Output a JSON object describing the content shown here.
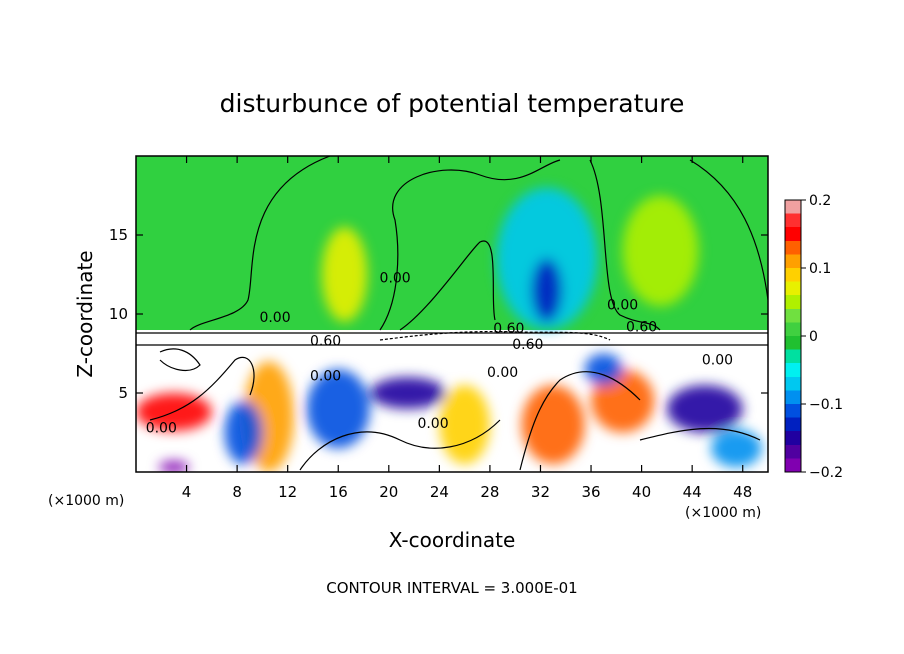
{
  "chart_data": {
    "type": "heatmap",
    "title": "disturbunce of potential temperature",
    "xlabel": "X-coordinate",
    "ylabel": "Z-coordinate",
    "x_unit": "(×1000 m)",
    "y_unit": "(×1000 m)",
    "footer": "CONTOUR INTERVAL = 3.000E-01",
    "xlim": [
      0,
      50
    ],
    "ylim": [
      0,
      20
    ],
    "x_ticks": [
      4,
      8,
      12,
      16,
      20,
      24,
      28,
      32,
      36,
      40,
      44,
      48
    ],
    "y_ticks": [
      5,
      10,
      15
    ],
    "colorbar": {
      "range": [
        -0.2,
        0.2
      ],
      "tick_values": [
        0.2,
        0.1,
        0,
        -0.1,
        -0.2
      ],
      "tick_labels": [
        "0.2",
        "0.1",
        "0",
        "−0.1",
        "−0.2"
      ],
      "colors": [
        "#f0a0a0",
        "#ff3030",
        "#ff0000",
        "#ff6000",
        "#ffa000",
        "#ffd000",
        "#e8f000",
        "#b0f000",
        "#70e040",
        "#40d040",
        "#20c030",
        "#00e0a0",
        "#00f0f0",
        "#00c8f0",
        "#0090f0",
        "#0050e0",
        "#0020c0",
        "#2000a0",
        "#5000a0",
        "#8000b0"
      ]
    },
    "contour_interval": 0.3,
    "contour_labels": [
      {
        "text": "0.00",
        "x": 11,
        "y": 9.5
      },
      {
        "text": "0.00",
        "x": 20.5,
        "y": 12
      },
      {
        "text": "0.00",
        "x": 38.5,
        "y": 10.3
      },
      {
        "text": "0.60",
        "x": 15,
        "y": 8.0
      },
      {
        "text": "0.60",
        "x": 29.5,
        "y": 8.8
      },
      {
        "text": "0.60",
        "x": 31,
        "y": 7.8
      },
      {
        "text": "0.60",
        "x": 40,
        "y": 8.9
      },
      {
        "text": "0.00",
        "x": 15,
        "y": 5.8
      },
      {
        "text": "0.00",
        "x": 29,
        "y": 6.0
      },
      {
        "text": "0.00",
        "x": 46,
        "y": 6.8
      },
      {
        "text": "0.00",
        "x": 2,
        "y": 2.5
      },
      {
        "text": "0.00",
        "x": 23.5,
        "y": 2.8
      }
    ],
    "field_blobs": [
      {
        "x": 16.5,
        "y": 12.5,
        "rx": 1.8,
        "ry": 3.0,
        "value": 0.08
      },
      {
        "x": 32.5,
        "y": 13.5,
        "rx": 4.0,
        "ry": 4.5,
        "value": -0.06
      },
      {
        "x": 32.5,
        "y": 11.5,
        "rx": 1.2,
        "ry": 2.0,
        "value": -0.13
      },
      {
        "x": 41.5,
        "y": 14.0,
        "rx": 3.0,
        "ry": 3.5,
        "value": 0.05
      },
      {
        "x": 3.0,
        "y": 3.8,
        "rx": 3.0,
        "ry": 1.2,
        "value": 0.16
      },
      {
        "x": 10.5,
        "y": 3.5,
        "rx": 2.0,
        "ry": 3.5,
        "value": 0.12
      },
      {
        "x": 8.5,
        "y": 2.5,
        "rx": 1.5,
        "ry": 2.0,
        "value": -0.12
      },
      {
        "x": 16.0,
        "y": 4.0,
        "rx": 2.5,
        "ry": 2.5,
        "value": -0.1
      },
      {
        "x": 21.5,
        "y": 5.0,
        "rx": 3.0,
        "ry": 1.0,
        "value": -0.15
      },
      {
        "x": 26.0,
        "y": 3.0,
        "rx": 2.0,
        "ry": 2.5,
        "value": 0.1
      },
      {
        "x": 33.0,
        "y": 3.0,
        "rx": 2.5,
        "ry": 2.5,
        "value": 0.14
      },
      {
        "x": 38.5,
        "y": 4.5,
        "rx": 2.5,
        "ry": 2.0,
        "value": 0.14
      },
      {
        "x": 45.0,
        "y": 4.0,
        "rx": 3.0,
        "ry": 1.5,
        "value": -0.14
      },
      {
        "x": 47.5,
        "y": 1.5,
        "rx": 2.0,
        "ry": 1.2,
        "value": -0.08
      },
      {
        "x": 37.0,
        "y": 6.5,
        "rx": 1.5,
        "ry": 1.0,
        "value": -0.1
      },
      {
        "x": 3.0,
        "y": 0.3,
        "rx": 1.2,
        "ry": 0.4,
        "value": -0.2
      }
    ]
  }
}
